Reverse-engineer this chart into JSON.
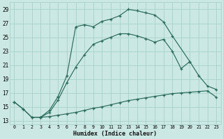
{
  "xlabel": "Humidex (Indice chaleur)",
  "bg_color": "#cce8e4",
  "grid_color": "#aad4ce",
  "line_color": "#2a6b5e",
  "xlim": [
    -0.5,
    23.5
  ],
  "ylim": [
    12.5,
    30.0
  ],
  "xticks": [
    0,
    1,
    2,
    3,
    4,
    5,
    6,
    7,
    8,
    9,
    10,
    11,
    12,
    13,
    14,
    15,
    16,
    17,
    18,
    19,
    20,
    21,
    22,
    23
  ],
  "yticks": [
    13,
    15,
    17,
    19,
    21,
    23,
    25,
    27,
    29
  ],
  "line1_x": [
    0,
    1,
    2,
    3,
    4,
    5,
    6,
    7,
    8,
    9,
    10,
    11,
    12,
    13,
    14,
    15,
    16,
    17,
    18,
    19,
    20,
    21,
    22,
    23
  ],
  "line1_y": [
    15.7,
    14.7,
    13.5,
    13.5,
    13.6,
    13.8,
    14.0,
    14.2,
    14.5,
    14.8,
    15.0,
    15.3,
    15.6,
    15.9,
    16.1,
    16.3,
    16.5,
    16.7,
    16.9,
    17.0,
    17.1,
    17.2,
    17.3,
    16.4
  ],
  "line2_x": [
    0,
    1,
    2,
    3,
    4,
    5,
    6,
    7,
    8,
    9,
    10,
    11,
    12,
    13,
    14,
    15,
    16,
    17,
    18,
    19,
    20,
    21,
    22,
    23
  ],
  "line2_y": [
    15.7,
    14.7,
    13.5,
    13.5,
    14.2,
    16.0,
    18.5,
    20.7,
    22.5,
    24.0,
    24.5,
    25.0,
    25.5,
    25.5,
    25.2,
    24.8,
    24.3,
    24.7,
    23.0,
    20.5,
    21.5,
    19.5,
    18.0,
    17.5
  ],
  "line3_x": [
    3,
    4,
    5,
    6,
    7,
    8,
    9,
    10,
    11,
    12,
    13,
    14,
    15,
    16,
    17,
    18,
    20
  ],
  "line3_y": [
    13.5,
    14.5,
    16.5,
    19.5,
    26.5,
    26.8,
    26.5,
    27.3,
    27.6,
    28.1,
    29.0,
    28.8,
    28.5,
    28.2,
    27.2,
    25.2,
    21.5
  ]
}
